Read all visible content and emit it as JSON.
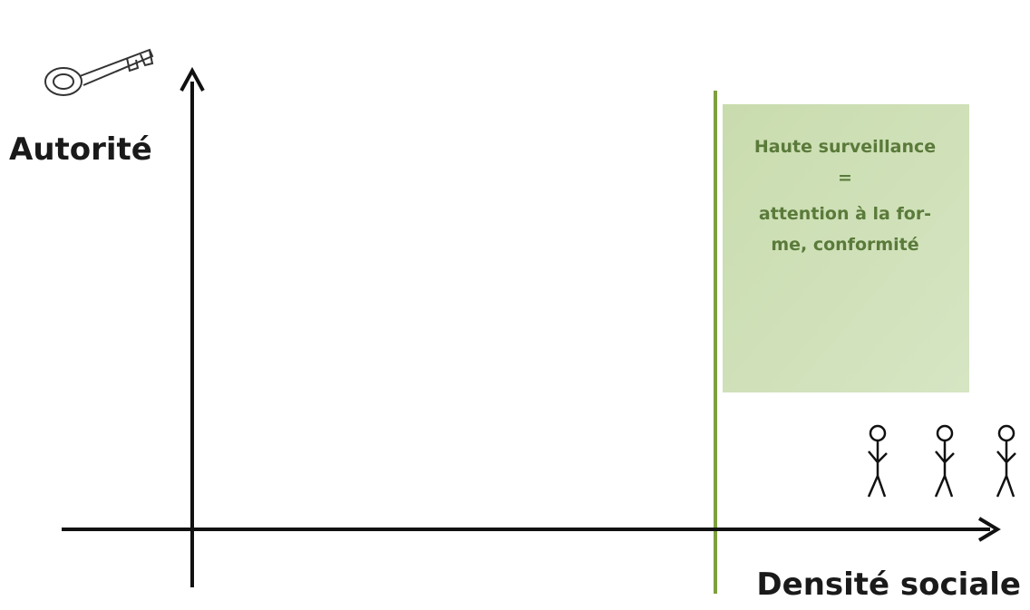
{
  "y_axis_label": "Autorité",
  "x_axis_label": "Densité sociale",
  "box": {
    "lines": [
      "Haute surveillance",
      "=",
      "attention à la for-",
      "me, conformité"
    ]
  }
}
